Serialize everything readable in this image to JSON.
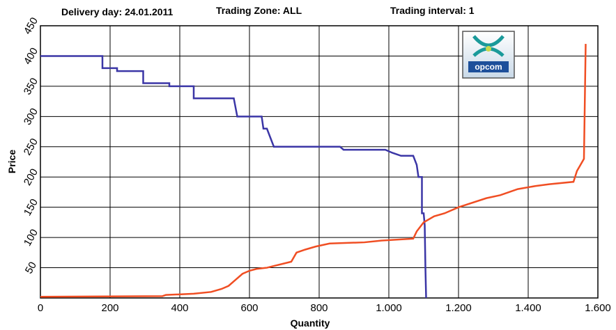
{
  "chart_data": {
    "type": "line",
    "header": [
      "Delivery day: 24.01.2011",
      "Trading Zone: ALL",
      "Trading interval: 1"
    ],
    "logo": "opcom",
    "x_label": "Quantity",
    "y_label": "Price",
    "xlim": [
      0,
      1600
    ],
    "ylim": [
      0,
      450
    ],
    "xticks": [
      0,
      200,
      400,
      600,
      800,
      {
        "value": 1000,
        "label": "1.000"
      },
      {
        "value": 1200,
        "label": "1.200"
      },
      {
        "value": 1400,
        "label": "1.400"
      },
      {
        "value": 1600,
        "label": "1.600"
      }
    ],
    "yticks": [
      50,
      100,
      150,
      200,
      250,
      300,
      350,
      400,
      450
    ],
    "grid": true,
    "series": [
      {
        "color": "#3b36a6",
        "x": [
          0,
          178,
          178,
          220,
          220,
          295,
          295,
          370,
          370,
          440,
          440,
          555,
          560,
          565,
          635,
          640,
          650,
          660,
          670,
          860,
          870,
          990,
          1010,
          1035,
          1070,
          1080,
          1085,
          1095,
          1095,
          1100,
          1103,
          1105,
          1107
        ],
        "values": [
          400,
          400,
          380,
          380,
          375,
          375,
          355,
          355,
          350,
          350,
          330,
          330,
          315,
          300,
          300,
          280,
          280,
          265,
          250,
          250,
          245,
          245,
          240,
          235,
          235,
          220,
          200,
          200,
          140,
          140,
          120,
          50,
          0
        ]
      },
      {
        "color": "#f04e23",
        "x": [
          0,
          350,
          360,
          440,
          490,
          520,
          540,
          560,
          580,
          600,
          620,
          650,
          720,
          735,
          760,
          790,
          830,
          930,
          980,
          1070,
          1080,
          1100,
          1130,
          1160,
          1200,
          1280,
          1320,
          1370,
          1420,
          1460,
          1530,
          1540,
          1550,
          1560,
          1565
        ],
        "values": [
          2,
          3,
          5,
          7,
          10,
          15,
          20,
          30,
          40,
          45,
          48,
          50,
          60,
          75,
          80,
          85,
          90,
          92,
          95,
          98,
          110,
          125,
          135,
          140,
          150,
          165,
          170,
          180,
          185,
          188,
          192,
          210,
          220,
          230,
          420
        ]
      }
    ]
  }
}
